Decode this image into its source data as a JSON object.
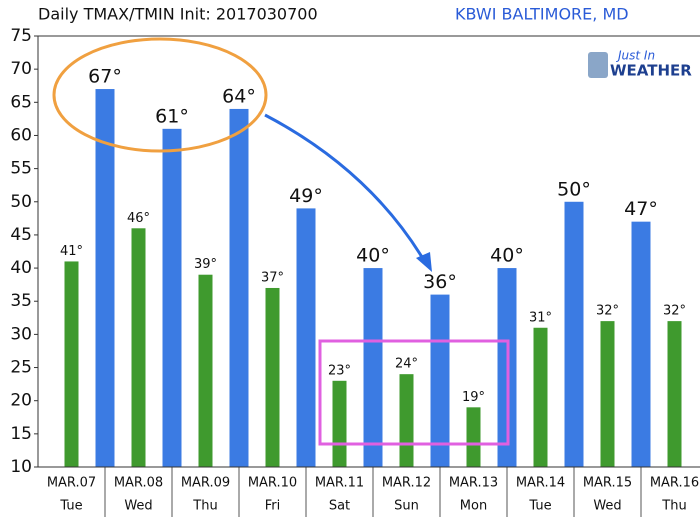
{
  "chart_data": {
    "type": "bar",
    "title": "Daily TMAX/TMIN Init: 2017030700",
    "subtitle": "KBWI BALTIMORE, MD",
    "logo": [
      "Just In",
      "WEATHER"
    ],
    "categories": [
      "MAR.07",
      "MAR.08",
      "MAR.09",
      "MAR.10",
      "MAR.11",
      "MAR.12",
      "MAR.13",
      "MAR.14",
      "MAR.15",
      "MAR.16"
    ],
    "weekdays": [
      "Tue",
      "Wed",
      "Thu",
      "Fri",
      "Sat",
      "Sun",
      "Mon",
      "Tue",
      "Wed",
      "Thu"
    ],
    "series": [
      {
        "color": "#3f9a2e",
        "values": [
          41,
          46,
          39,
          37,
          23,
          24,
          19,
          31,
          32,
          32
        ],
        "value_labels": [
          "41°",
          "46°",
          "39°",
          "37°",
          "23°",
          "24°",
          "19°",
          "31°",
          "32°",
          "32°"
        ]
      },
      {
        "color": "#3b7be3",
        "values": [
          67,
          61,
          64,
          49,
          40,
          36,
          40,
          50,
          47,
          null
        ],
        "value_labels": [
          "67°",
          "61°",
          "64°",
          "49°",
          "40°",
          "36°",
          "40°",
          "50°",
          "47°",
          null
        ]
      }
    ],
    "ylim": [
      10,
      75
    ],
    "yticks": [
      10,
      15,
      20,
      25,
      30,
      35,
      40,
      45,
      50,
      55,
      60,
      65,
      70,
      75
    ],
    "grid": false
  }
}
